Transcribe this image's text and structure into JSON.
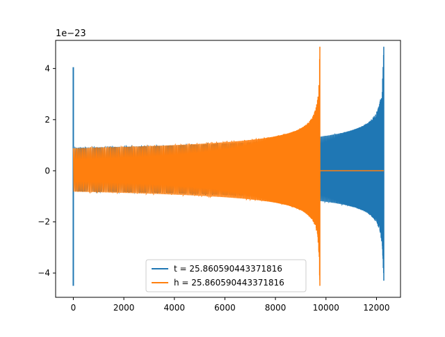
{
  "chart_data": {
    "type": "line",
    "title": "",
    "xlabel": "",
    "ylabel": "",
    "y_offset_label": "1e−23",
    "xlim": [
      -700,
      12950
    ],
    "ylim": [
      -4.95,
      5.1
    ],
    "x_ticks": [
      0,
      2000,
      4000,
      6000,
      8000,
      10000,
      12000
    ],
    "x_tick_labels": [
      "0",
      "2000",
      "4000",
      "6000",
      "8000",
      "10000",
      "12000"
    ],
    "y_ticks": [
      -4,
      -2,
      0,
      2,
      4
    ],
    "y_tick_labels": [
      "−4",
      "−2",
      "0",
      "2",
      "4"
    ],
    "grid": false,
    "legend_position": "lower-center",
    "series": [
      {
        "name": "t = 25.860590443371816",
        "color": "#1f77b4",
        "kind": "chirp",
        "x_start": 0,
        "x_merger": 12290,
        "x_end": 12290,
        "amplitude_start": 0.9,
        "amplitude_peak_max": 4.85,
        "amplitude_peak_min": -4.3,
        "start_spike": [
          4.05,
          -4.5
        ]
      },
      {
        "name": "h = 25.860590443371816",
        "color": "#ff7f0e",
        "kind": "chirp",
        "x_start": 0,
        "x_merger": 9760,
        "x_end": 12290,
        "amplitude_start": 0.88,
        "amplitude_peak_max": 4.85,
        "amplitude_peak_min": -4.5,
        "tail_value": 0.0
      }
    ]
  }
}
